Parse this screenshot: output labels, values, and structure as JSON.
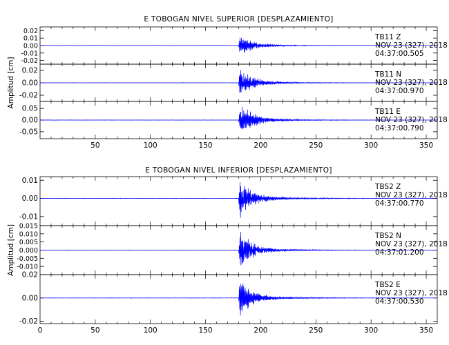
{
  "chart_data": [
    {
      "type": "line",
      "title": "E TOBOGAN NIVEL SUPERIOR [DESPLAZAMIENTO]",
      "ylabel": "Amplitud [cm]",
      "xlabel": "",
      "xlim": [
        0,
        360
      ],
      "xticks": [
        "50",
        "100",
        "150",
        "200",
        "250",
        "300",
        "350"
      ],
      "grid": false,
      "panels": [
        {
          "station": "TB11",
          "component": "Z",
          "date": "NOV 23 (327), 2018",
          "time": "04:37:00.505",
          "ylim": [
            -0.025,
            0.025
          ],
          "yticks": [
            "0.02",
            "0.01",
            "0.00",
            "-0.01",
            "-0.02"
          ],
          "onset_s": 180,
          "peak_cm": 0.015,
          "color": "#0000ff"
        },
        {
          "station": "TB11",
          "component": "N",
          "date": "NOV 23 (327), 2018",
          "time": "04:37:00.970",
          "ylim": [
            -0.03,
            0.03
          ],
          "yticks": [
            "0.02",
            "0.00",
            "-0.02"
          ],
          "onset_s": 180,
          "peak_cm": 0.025,
          "color": "#0000ff"
        },
        {
          "station": "TB11",
          "component": "E",
          "date": "NOV 23 (327), 2018",
          "time": "04:37:00.790",
          "ylim": [
            -0.08,
            0.08
          ],
          "yticks": [
            "0.05",
            "0.00",
            "-0.05"
          ],
          "onset_s": 180,
          "peak_cm": 0.075,
          "color": "#0000ff"
        }
      ]
    },
    {
      "type": "line",
      "title": "E TOBOGAN NIVEL INFERIOR [DESPLAZAMIENTO]",
      "ylabel": "Amplitud [cm]",
      "xlabel": "",
      "xlim": [
        0,
        360
      ],
      "xticks": [
        "0",
        "50",
        "100",
        "150",
        "200",
        "250",
        "300",
        "350"
      ],
      "grid": false,
      "panels": [
        {
          "station": "TBS2",
          "component": "Z",
          "date": "NOV 23 (327), 2018",
          "time": "04:37:00.770",
          "ylim": [
            -0.015,
            0.012
          ],
          "yticks": [
            "0.01",
            "0.00",
            "-0.01"
          ],
          "onset_s": 180,
          "peak_cm": 0.012,
          "color": "#0000ff"
        },
        {
          "station": "TBS2",
          "component": "N",
          "date": "NOV 23 (327), 2018",
          "time": "04:37:01.200",
          "ylim": [
            -0.015,
            0.015
          ],
          "yticks": [
            "0.015",
            "0.010",
            "0.005",
            "0.000",
            "-0.005",
            "-0.010"
          ],
          "onset_s": 180,
          "peak_cm": 0.012,
          "color": "#0000ff"
        },
        {
          "station": "TBS2",
          "component": "E",
          "date": "NOV 23 (327), 2018",
          "time": "04:37:00.530",
          "ylim": [
            -0.022,
            0.02
          ],
          "yticks": [
            "0.02",
            "0.00",
            "-0.02"
          ],
          "onset_s": 180,
          "peak_cm": 0.017,
          "color": "#0000ff"
        }
      ]
    }
  ]
}
